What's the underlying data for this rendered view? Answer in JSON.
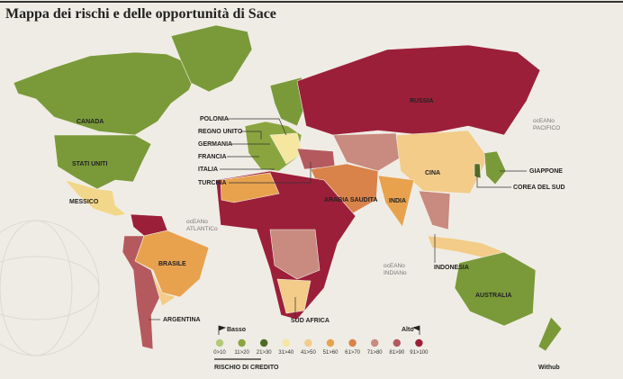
{
  "title": "Mappa dei rischi e delle opportunità di Sace",
  "countries": [
    "CANADA",
    "STATI UNITI",
    "MESSICO",
    "BRASILE",
    "ARGENTINA",
    "POLONIA",
    "REGNO UNITO",
    "GERMANIA",
    "FRANCIA",
    "ITALIA",
    "TURCHIA",
    "ARABIA SAUDITA",
    "RUSSIA",
    "CINA",
    "INDIA",
    "GIAPPONE",
    "COREA DEL SUD",
    "INDONESIA",
    "AUSTRALIA",
    "SUD AFRICA"
  ],
  "oceans": [
    [
      "ocEANo",
      "PACIFICO"
    ],
    [
      "ocEANo",
      "ATLANTICo"
    ],
    [
      "ocEANo",
      "INDIANo"
    ]
  ],
  "legend": {
    "low": "Basso",
    "high": "Alto",
    "caption": "RISCHIO DI CREDITO",
    "classes": [
      {
        "label": "0>10",
        "color": "#b5c97a"
      },
      {
        "label": "11>20",
        "color": "#8aa53f"
      },
      {
        "label": "21>30",
        "color": "#4f6b26"
      },
      {
        "label": "31>40",
        "color": "#f5e6a0"
      },
      {
        "label": "41>50",
        "color": "#f2cc88"
      },
      {
        "label": "51>60",
        "color": "#e8a24e"
      },
      {
        "label": "61>70",
        "color": "#d9824a"
      },
      {
        "label": "71>80",
        "color": "#c98a7f"
      },
      {
        "label": "81>90",
        "color": "#b45a5f"
      },
      {
        "label": "91>100",
        "color": "#9c1f3a"
      }
    ]
  },
  "credit": "Withub"
}
